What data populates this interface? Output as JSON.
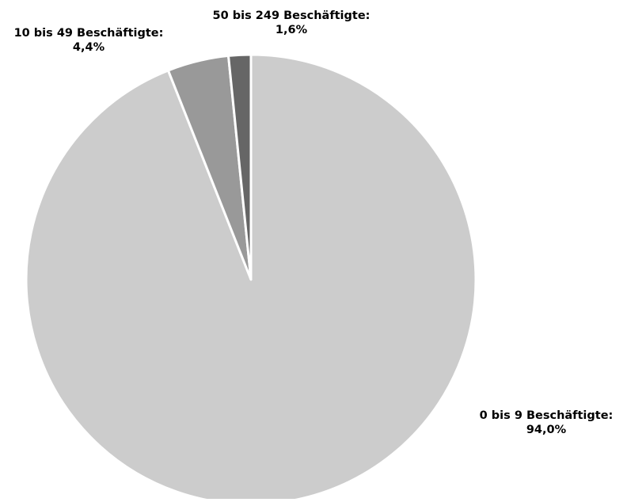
{
  "chart_data": {
    "type": "pie",
    "title": "",
    "start_angle_deg": 0,
    "direction": "clockwise",
    "slices": [
      {
        "category": "0 bis 9 Beschäftigte:",
        "value": 94.0,
        "value_label": "94,0%",
        "color": "#cccccc"
      },
      {
        "category": "10 bis 49 Beschäftigte:",
        "value": 4.4,
        "value_label": "4,4%",
        "color": "#999999"
      },
      {
        "category": "50 bis 249 Beschäftigte:",
        "value": 1.6,
        "value_label": "1,6%",
        "color": "#666666"
      }
    ],
    "legend": "none"
  }
}
